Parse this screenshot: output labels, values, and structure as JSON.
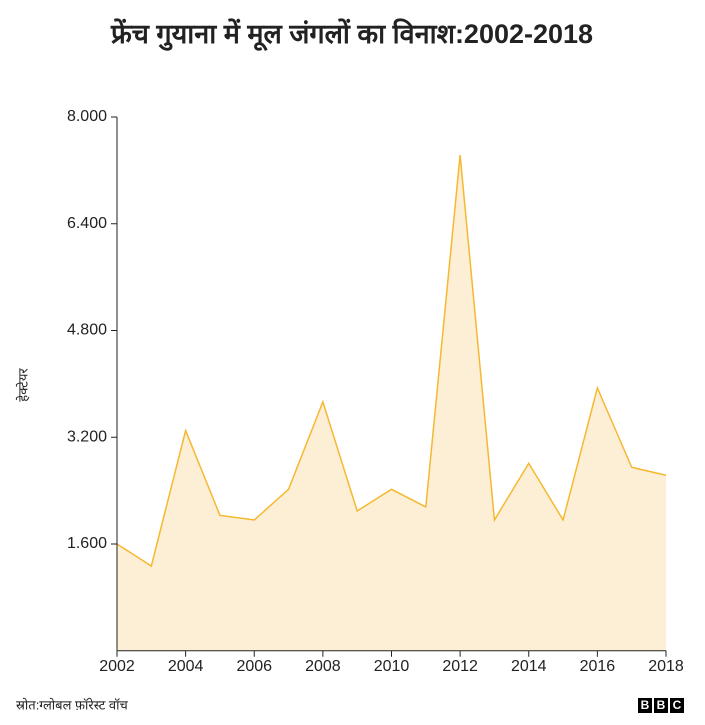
{
  "chart_data": {
    "type": "area",
    "title": "फ्रेंच गुयाना में मूल जंगलों का विनाश:2002-2018",
    "y_label": "हेक्टेयर",
    "source": "स्रोत:ग्लोबल फ़ॉरेस्ट वॉच",
    "logo": [
      "B",
      "B",
      "C"
    ],
    "x": [
      2002,
      2003,
      2004,
      2005,
      2006,
      2007,
      2008,
      2009,
      2010,
      2011,
      2012,
      2013,
      2014,
      2015,
      2016,
      2017,
      2018
    ],
    "series": [
      {
        "name": "हेक्टेयर",
        "color": "#f6b830",
        "fill": "#fdefd6",
        "values": [
          1600,
          1270,
          3300,
          2030,
          1960,
          2420,
          3730,
          2095,
          2420,
          2155,
          7430,
          1960,
          2810,
          1960,
          3940,
          2750,
          2630
        ]
      }
    ],
    "xlim": [
      2002,
      2018
    ],
    "xticks": [
      2002,
      2004,
      2006,
      2008,
      2010,
      2012,
      2014,
      2016,
      2018
    ],
    "ylim": [
      0,
      8000
    ],
    "yticks": [
      {
        "value": 1600,
        "label": "1.600"
      },
      {
        "value": 3200,
        "label": "3.200"
      },
      {
        "value": 4800,
        "label": "4.800"
      },
      {
        "value": 6400,
        "label": "6.400"
      },
      {
        "value": 8000,
        "label": "8.000"
      }
    ]
  }
}
